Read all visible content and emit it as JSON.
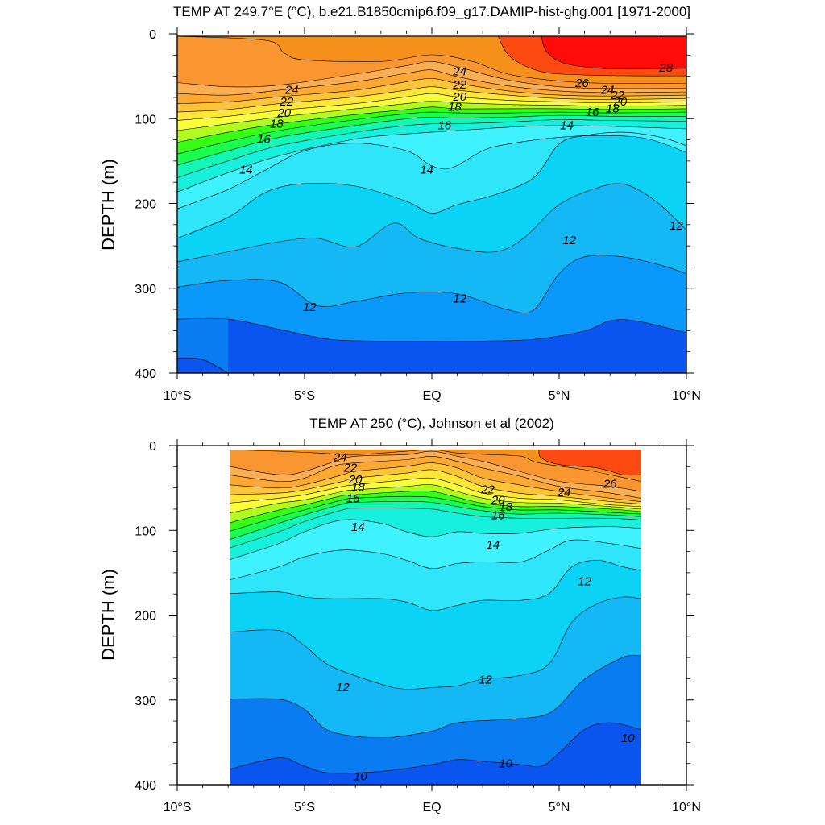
{
  "colors": {
    "c10": "#0a55f0",
    "c11": "#0a7cf2",
    "c11_5": "#0a99fb",
    "c12": "#14b8f5",
    "c12_5": "#0bd3f5",
    "c13": "#2ee5fa",
    "c14": "#3ef2ff",
    "c14_5": "#16f0dc",
    "c15": "#12f7b4",
    "c16": "#18ff4e",
    "c17": "#36ff16",
    "c18": "#b2fb1e",
    "c19": "#f8ff3a",
    "c20": "#ffe637",
    "c21": "#fdc437",
    "c22": "#fca832",
    "c23": "#fcae53",
    "c24": "#fa9630",
    "c26": "#f5911b",
    "c27": "#fc4a10",
    "c28": "#ff0c08"
  },
  "chart_data": [
    {
      "type": "contour",
      "title": "TEMP AT 249.7°E (°C), b.e21.B1850cmip6.f09_g17.DAMIP-hist-ghg.001 [1971-2000]",
      "xlabel": "",
      "ylabel": "DEPTH (m)",
      "xlim": [
        -10,
        10
      ],
      "ylim": [
        0,
        400
      ],
      "y_inverted": true,
      "x_ticks": [
        -10,
        -5,
        0,
        5,
        10
      ],
      "x_tick_labels": [
        "10°S",
        "5°S",
        "EQ",
        "5°N",
        "10°N"
      ],
      "y_ticks": [
        0,
        100,
        200,
        300,
        400
      ],
      "y_tick_labels": [
        "0",
        "100",
        "200",
        "300",
        "400"
      ],
      "data_x_range": [
        -10,
        10
      ],
      "bands": [
        {
          "key": "c28",
          "from": 27,
          "top": [
            [
              -10,
              0
            ],
            [
              10,
              0
            ]
          ],
          "bottom": [
            [
              4.3,
              0
            ],
            [
              4.5,
              18
            ],
            [
              5.2,
              32
            ],
            [
              6.5,
              38
            ],
            [
              8,
              39
            ],
            [
              10,
              38
            ]
          ]
        },
        {
          "key": "c26",
          "from": 25,
          "top": [
            [
              -10,
              0
            ],
            [
              10,
              0
            ]
          ],
          "bottom": [
            [
              2.2,
              0
            ],
            [
              3.2,
              30
            ],
            [
              4.5,
              50
            ],
            [
              7,
              55
            ],
            [
              10,
              56
            ]
          ]
        }
      ],
      "contour_labels": [
        {
          "text": "28",
          "x": 9.2,
          "y": 40
        },
        {
          "text": "26",
          "x": 5.9,
          "y": 58
        },
        {
          "text": "24",
          "x": 1.1,
          "y": 44
        },
        {
          "text": "22",
          "x": 1.1,
          "y": 60
        },
        {
          "text": "20",
          "x": 1.1,
          "y": 74
        },
        {
          "text": "18",
          "x": 0.9,
          "y": 86
        },
        {
          "text": "16",
          "x": 0.5,
          "y": 108
        },
        {
          "text": "14",
          "x": 5.3,
          "y": 108
        },
        {
          "text": "16",
          "x": 6.3,
          "y": 92
        },
        {
          "text": "14",
          "x": -0.2,
          "y": 160
        },
        {
          "text": "24",
          "x": -5.5,
          "y": 66
        },
        {
          "text": "22",
          "x": -5.7,
          "y": 80
        },
        {
          "text": "20",
          "x": -5.8,
          "y": 93
        },
        {
          "text": "18",
          "x": -6.1,
          "y": 106
        },
        {
          "text": "16",
          "x": -6.6,
          "y": 124
        },
        {
          "text": "14",
          "x": -7.3,
          "y": 160
        },
        {
          "text": "24",
          "x": 6.9,
          "y": 66
        },
        {
          "text": "22",
          "x": 7.3,
          "y": 72
        },
        {
          "text": "20",
          "x": 7.4,
          "y": 80
        },
        {
          "text": "18",
          "x": 7.1,
          "y": 88
        },
        {
          "text": "12",
          "x": 5.4,
          "y": 243
        },
        {
          "text": "12",
          "x": 9.6,
          "y": 226
        },
        {
          "text": "12",
          "x": -4.8,
          "y": 322
        },
        {
          "text": "12",
          "x": 1.1,
          "y": 312
        }
      ]
    },
    {
      "type": "contour",
      "title": "TEMP AT 250 (°C), Johnson et al (2002)",
      "xlabel": "",
      "ylabel": "DEPTH (m)",
      "xlim": [
        -10,
        10
      ],
      "ylim": [
        0,
        400
      ],
      "y_inverted": true,
      "x_ticks": [
        -10,
        -5,
        0,
        5,
        10
      ],
      "x_tick_labels": [
        "10°S",
        "5°S",
        "EQ",
        "5°N",
        "10°N"
      ],
      "y_ticks": [
        0,
        100,
        200,
        300,
        400
      ],
      "y_tick_labels": [
        "0",
        "100",
        "200",
        "300",
        "400"
      ],
      "data_x_range": [
        -8,
        8.2
      ],
      "contour_labels": [
        {
          "text": "24",
          "x": -3.6,
          "y": 14
        },
        {
          "text": "22",
          "x": -3.2,
          "y": 26
        },
        {
          "text": "20",
          "x": -3,
          "y": 40
        },
        {
          "text": "18",
          "x": -2.9,
          "y": 49
        },
        {
          "text": "16",
          "x": -3.1,
          "y": 62
        },
        {
          "text": "14",
          "x": -2.9,
          "y": 96
        },
        {
          "text": "22",
          "x": 2.2,
          "y": 52
        },
        {
          "text": "20",
          "x": 2.6,
          "y": 64
        },
        {
          "text": "18",
          "x": 2.9,
          "y": 72
        },
        {
          "text": "16",
          "x": 2.6,
          "y": 82
        },
        {
          "text": "14",
          "x": 2.4,
          "y": 117
        },
        {
          "text": "24",
          "x": 5.2,
          "y": 55
        },
        {
          "text": "26",
          "x": 7,
          "y": 45
        },
        {
          "text": "12",
          "x": 6,
          "y": 160
        },
        {
          "text": "12",
          "x": -3.5,
          "y": 285
        },
        {
          "text": "12",
          "x": 2.1,
          "y": 276
        },
        {
          "text": "10",
          "x": -2.8,
          "y": 390
        },
        {
          "text": "10",
          "x": 2.9,
          "y": 375
        },
        {
          "text": "10",
          "x": 7.7,
          "y": 345
        }
      ]
    }
  ]
}
